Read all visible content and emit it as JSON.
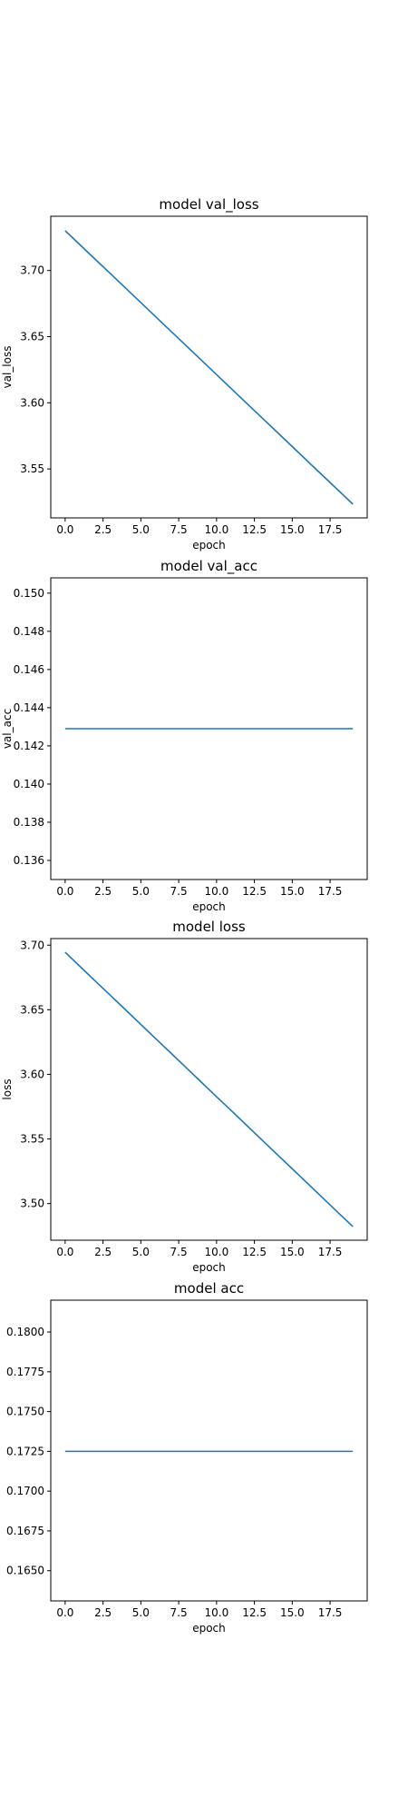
{
  "chart_data": [
    {
      "type": "line",
      "title": "model val_loss",
      "xlabel": "epoch",
      "ylabel": "val_loss",
      "x": [
        0,
        1,
        2,
        3,
        4,
        5,
        6,
        7,
        8,
        9,
        10,
        11,
        12,
        13,
        14,
        15,
        16,
        17,
        18,
        19
      ],
      "series": [
        {
          "values": [
            3.7301,
            3.7192,
            3.7083,
            3.6975,
            3.6866,
            3.6757,
            3.6648,
            3.6539,
            3.6431,
            3.6322,
            3.6213,
            3.6104,
            3.5995,
            3.5887,
            3.5778,
            3.5669,
            3.556,
            3.5451,
            3.5343,
            3.5234
          ]
        }
      ],
      "xlim": [
        -0.95,
        19.95
      ],
      "ylim": [
        3.513,
        3.741
      ],
      "xticks": [
        0.0,
        2.5,
        5.0,
        7.5,
        10.0,
        12.5,
        15.0,
        17.5
      ],
      "xtick_labels": [
        "0.0",
        "2.5",
        "5.0",
        "7.5",
        "10.0",
        "12.5",
        "15.0",
        "17.5"
      ],
      "yticks": [
        3.55,
        3.6,
        3.65,
        3.7
      ],
      "ytick_labels": [
        "3.55",
        "3.60",
        "3.65",
        "3.70"
      ],
      "color": "#1f77b4",
      "grid": false
    },
    {
      "type": "line",
      "title": "model val_acc",
      "xlabel": "epoch",
      "ylabel": "val_acc",
      "x": [
        0,
        1,
        2,
        3,
        4,
        5,
        6,
        7,
        8,
        9,
        10,
        11,
        12,
        13,
        14,
        15,
        16,
        17,
        18,
        19
      ],
      "series": [
        {
          "values": [
            0.1429,
            0.1429,
            0.1429,
            0.1429,
            0.1429,
            0.1429,
            0.1429,
            0.1429,
            0.1429,
            0.1429,
            0.1429,
            0.1429,
            0.1429,
            0.1429,
            0.1429,
            0.1429,
            0.1429,
            0.1429,
            0.1429,
            0.1429
          ]
        }
      ],
      "xlim": [
        -0.95,
        19.95
      ],
      "ylim": [
        0.135,
        0.1508
      ],
      "xticks": [
        0.0,
        2.5,
        5.0,
        7.5,
        10.0,
        12.5,
        15.0,
        17.5
      ],
      "xtick_labels": [
        "0.0",
        "2.5",
        "5.0",
        "7.5",
        "10.0",
        "12.5",
        "15.0",
        "17.5"
      ],
      "yticks": [
        0.136,
        0.138,
        0.14,
        0.142,
        0.144,
        0.146,
        0.148,
        0.15
      ],
      "ytick_labels": [
        "0.136",
        "0.138",
        "0.140",
        "0.142",
        "0.144",
        "0.146",
        "0.148",
        "0.150"
      ],
      "color": "#1f77b4",
      "grid": false
    },
    {
      "type": "line",
      "title": "model loss",
      "xlabel": "epoch",
      "ylabel": "loss",
      "x": [
        0,
        1,
        2,
        3,
        4,
        5,
        6,
        7,
        8,
        9,
        10,
        11,
        12,
        13,
        14,
        15,
        16,
        17,
        18,
        19
      ],
      "series": [
        {
          "values": [
            3.6945,
            3.6833,
            3.6721,
            3.661,
            3.6498,
            3.6386,
            3.6274,
            3.6163,
            3.6051,
            3.5939,
            3.5827,
            3.5716,
            3.5604,
            3.5492,
            3.538,
            3.5269,
            3.5157,
            3.5045,
            3.4933,
            3.4822
          ]
        }
      ],
      "xlim": [
        -0.95,
        19.95
      ],
      "ylim": [
        3.4716,
        3.7051
      ],
      "xticks": [
        0.0,
        2.5,
        5.0,
        7.5,
        10.0,
        12.5,
        15.0,
        17.5
      ],
      "xtick_labels": [
        "0.0",
        "2.5",
        "5.0",
        "7.5",
        "10.0",
        "12.5",
        "15.0",
        "17.5"
      ],
      "yticks": [
        3.5,
        3.55,
        3.6,
        3.65,
        3.7
      ],
      "ytick_labels": [
        "3.50",
        "3.55",
        "3.60",
        "3.65",
        "3.70"
      ],
      "color": "#1f77b4",
      "grid": false
    },
    {
      "type": "line",
      "title": "model acc",
      "xlabel": "epoch",
      "ylabel": "",
      "x": [
        0,
        1,
        2,
        3,
        4,
        5,
        6,
        7,
        8,
        9,
        10,
        11,
        12,
        13,
        14,
        15,
        16,
        17,
        18,
        19
      ],
      "series": [
        {
          "values": [
            0.1725,
            0.1725,
            0.1725,
            0.1725,
            0.1725,
            0.1725,
            0.1725,
            0.1725,
            0.1725,
            0.1725,
            0.1725,
            0.1725,
            0.1725,
            0.1725,
            0.1725,
            0.1725,
            0.1725,
            0.1725,
            0.1725,
            0.1725
          ]
        }
      ],
      "xlim": [
        -0.95,
        19.95
      ],
      "ylim": [
        0.1631,
        0.182
      ],
      "xticks": [
        0.0,
        2.5,
        5.0,
        7.5,
        10.0,
        12.5,
        15.0,
        17.5
      ],
      "xtick_labels": [
        "0.0",
        "2.5",
        "5.0",
        "7.5",
        "10.0",
        "12.5",
        "15.0",
        "17.5"
      ],
      "yticks": [
        0.165,
        0.1675,
        0.17,
        0.1725,
        0.175,
        0.1775,
        0.18
      ],
      "ytick_labels": [
        "0.1650",
        "0.1675",
        "0.1700",
        "0.1725",
        "0.1750",
        "0.1775",
        "0.1800"
      ],
      "color": "#1f77b4",
      "grid": false
    }
  ]
}
